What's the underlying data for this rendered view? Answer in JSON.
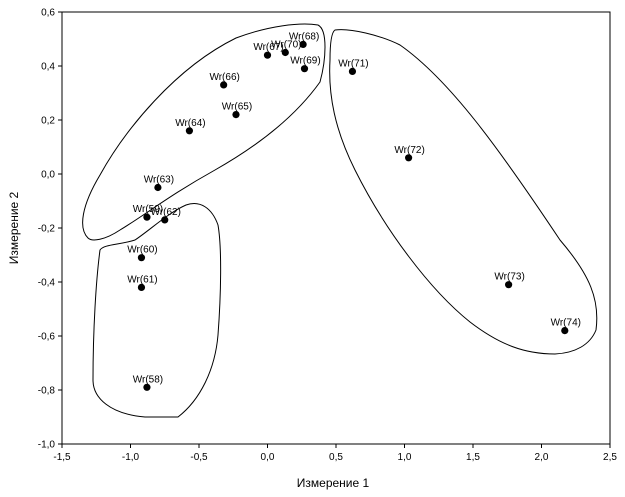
{
  "chart_data": {
    "type": "scatter",
    "title": "",
    "xlabel": "Измерение 1",
    "ylabel": "Измерение 2",
    "xlim": [
      -1.5,
      2.5
    ],
    "ylim": [
      -1.0,
      0.6
    ],
    "xticks": [
      -1.5,
      -1.0,
      -0.5,
      0.0,
      0.5,
      1.0,
      1.5,
      2.0,
      2.5
    ],
    "xtick_labels": [
      "-1,5",
      "-1,0",
      "-0,5",
      "0,0",
      "0,5",
      "1,0",
      "1,5",
      "2,0",
      "2,5"
    ],
    "yticks": [
      0.6,
      0.4,
      0.2,
      0.0,
      -0.2,
      -0.4,
      -0.6,
      -0.8,
      -1.0
    ],
    "ytick_labels": [
      "0,6",
      "0,4",
      "0,2",
      "0,0",
      "-0,2",
      "-0,4",
      "-0,6",
      "-0,8",
      "-1,0"
    ],
    "grid": false,
    "legend": "none",
    "marker_color": "#000000",
    "points": [
      {
        "label": "Wr(58)",
        "x": -0.88,
        "y": -0.79
      },
      {
        "label": "Wr(59)",
        "x": -0.88,
        "y": -0.16
      },
      {
        "label": "Wr(60)",
        "x": -0.92,
        "y": -0.31
      },
      {
        "label": "Wr(61)",
        "x": -0.92,
        "y": -0.42
      },
      {
        "label": "Wr(62)",
        "x": -0.75,
        "y": -0.17
      },
      {
        "label": "Wr(63)",
        "x": -0.8,
        "y": -0.05
      },
      {
        "label": "Wr(64)",
        "x": -0.57,
        "y": 0.16
      },
      {
        "label": "Wr(65)",
        "x": -0.23,
        "y": 0.22
      },
      {
        "label": "Wr(66)",
        "x": -0.32,
        "y": 0.33
      },
      {
        "label": "Wr(67)",
        "x": 0.0,
        "y": 0.44
      },
      {
        "label": "Wr(70)",
        "x": 0.13,
        "y": 0.45
      },
      {
        "label": "Wr(68)",
        "x": 0.26,
        "y": 0.48
      },
      {
        "label": "Wr(69)",
        "x": 0.27,
        "y": 0.39
      },
      {
        "label": "Wr(71)",
        "x": 0.62,
        "y": 0.38
      },
      {
        "label": "Wr(72)",
        "x": 1.03,
        "y": 0.06
      },
      {
        "label": "Wr(73)",
        "x": 1.76,
        "y": -0.41
      },
      {
        "label": "Wr(74)",
        "x": 2.17,
        "y": -0.58
      }
    ]
  }
}
